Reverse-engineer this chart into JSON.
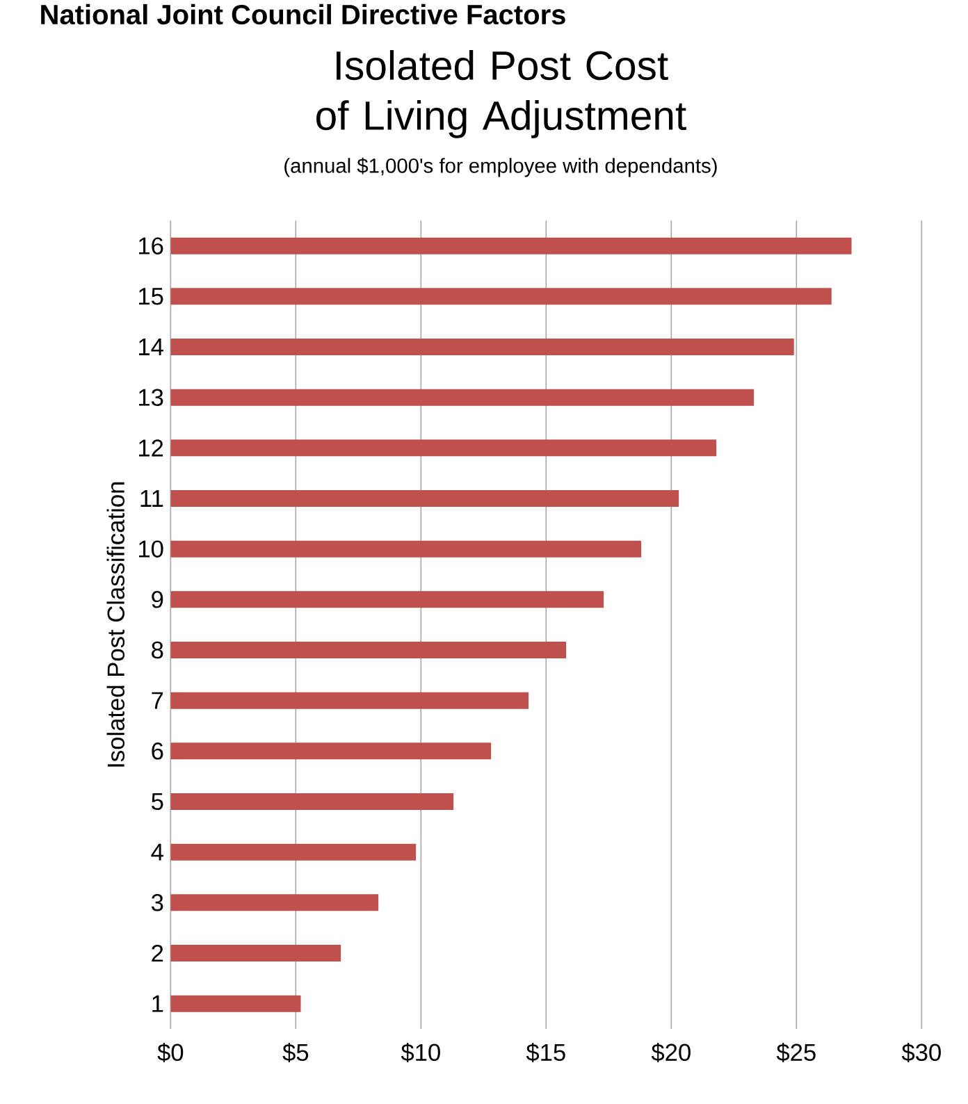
{
  "chart_data": {
    "type": "bar",
    "orientation": "horizontal",
    "title": "Isolated Post Cost of Living Adjustment",
    "subtitle": "(annual $1,000's for employee with dependants)",
    "ylabel": "Isolated Post Classification",
    "annotations": [
      "National Joint Council Directive Factors"
    ],
    "categories": [
      "16",
      "15",
      "14",
      "13",
      "12",
      "11",
      "10",
      "9",
      "8",
      "7",
      "6",
      "5",
      "4",
      "3",
      "2",
      "1"
    ],
    "values": [
      27.2,
      26.4,
      24.9,
      23.3,
      21.8,
      20.3,
      18.8,
      17.3,
      15.8,
      14.3,
      12.8,
      11.3,
      9.8,
      8.3,
      6.8,
      5.2
    ],
    "color": "#c0504d",
    "xlim": [
      0,
      30
    ],
    "xticks": [
      {
        "value": 0,
        "label": "$0"
      },
      {
        "value": 5,
        "label": "$5"
      },
      {
        "value": 10,
        "label": "$10"
      },
      {
        "value": 15,
        "label": "$15"
      },
      {
        "value": 20,
        "label": "$20"
      },
      {
        "value": 25,
        "label": "$25"
      },
      {
        "value": 30,
        "label": "$30"
      }
    ],
    "grid": "x"
  }
}
